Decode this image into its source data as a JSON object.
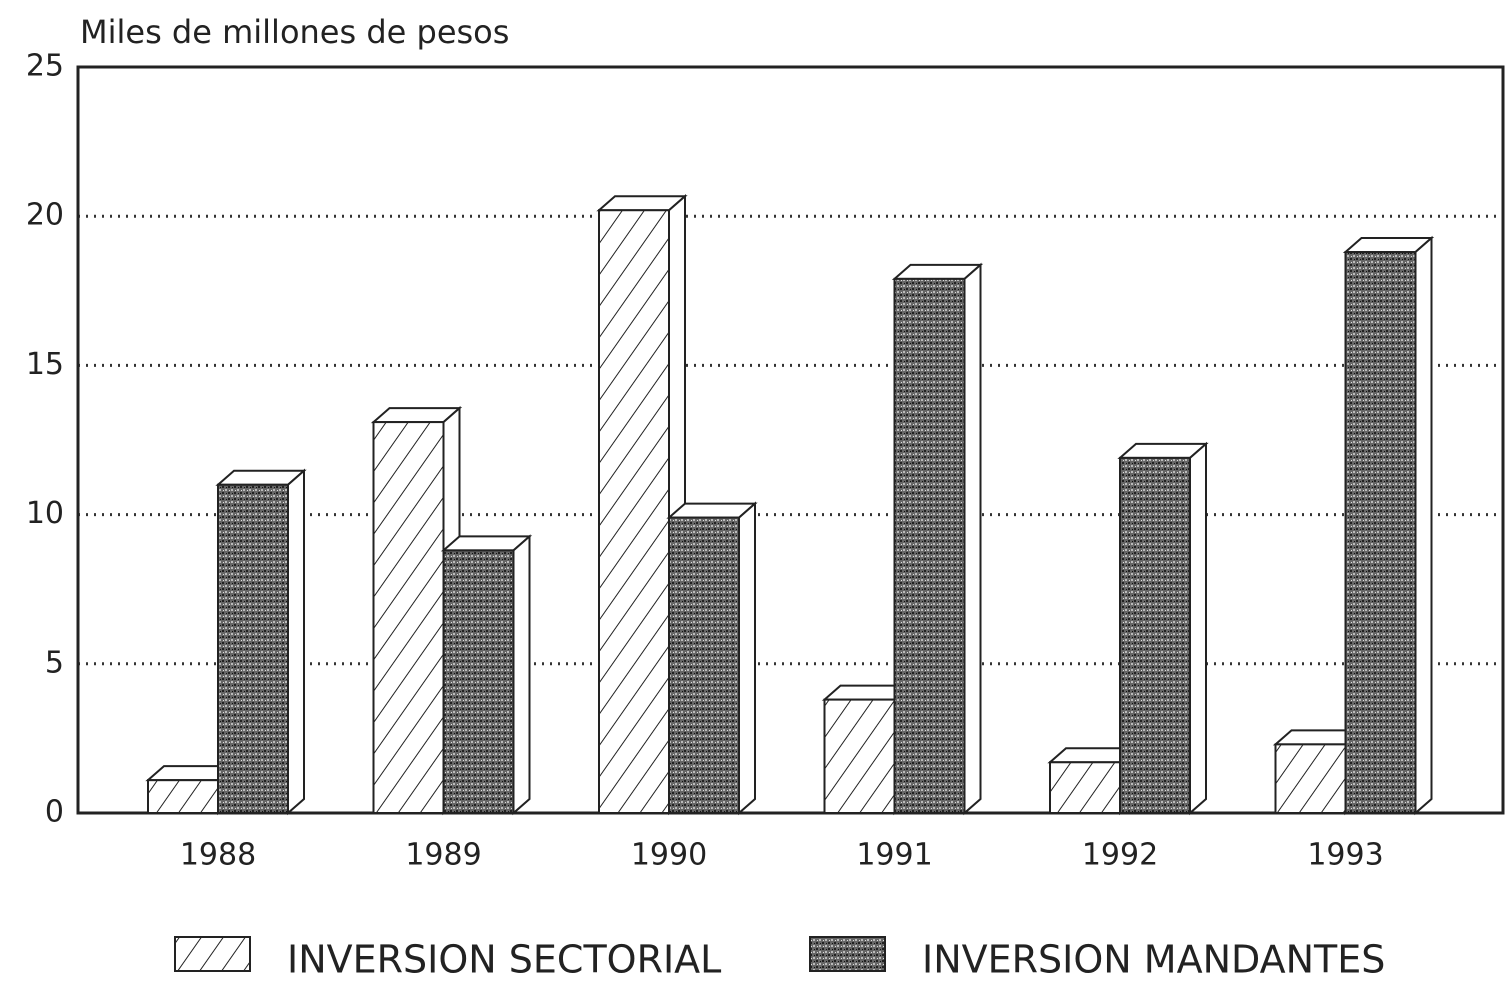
{
  "chart_data": {
    "type": "bar3d",
    "title": "Miles de millones de pesos",
    "categories": [
      "1988",
      "1989",
      "1990",
      "1991",
      "1992",
      "1993"
    ],
    "series": [
      {
        "name": "INVERSION SECTORIAL",
        "color": "#ffffff",
        "values": [
          1.1,
          13.1,
          20.2,
          3.8,
          1.7,
          2.3
        ]
      },
      {
        "name": "INVERSION MANDANTES",
        "color": "#555555",
        "values": [
          11,
          8.8,
          9.9,
          17.9,
          11.9,
          18.8
        ]
      }
    ],
    "ylim": [
      0,
      25
    ],
    "yticks": [
      0,
      5,
      10,
      15,
      20,
      25
    ],
    "grid": true
  }
}
